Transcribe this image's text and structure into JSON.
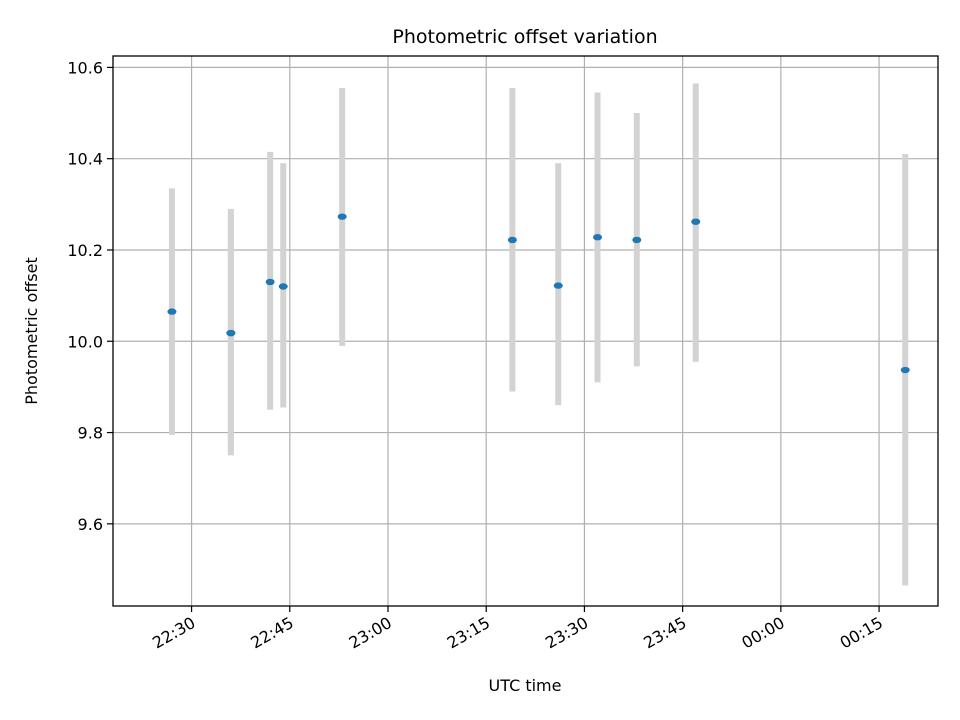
{
  "chart_data": {
    "type": "scatter",
    "title": "Photometric offset variation",
    "xlabel": "UTC time",
    "ylabel": "Photometric offset",
    "x_start": "22:18",
    "x_end": "00:24",
    "xlim_minutes": [
      -12,
      114
    ],
    "ylim": [
      9.42,
      10.625
    ],
    "grid": true,
    "x_ticks": [
      {
        "label": "22:30",
        "minute": 0
      },
      {
        "label": "22:45",
        "minute": 15
      },
      {
        "label": "23:00",
        "minute": 30
      },
      {
        "label": "23:15",
        "minute": 45
      },
      {
        "label": "23:30",
        "minute": 60
      },
      {
        "label": "23:45",
        "minute": 75
      },
      {
        "label": "00:00",
        "minute": 90
      },
      {
        "label": "00:15",
        "minute": 105
      }
    ],
    "y_ticks": [
      {
        "label": "9.6",
        "value": 9.6
      },
      {
        "label": "9.8",
        "value": 9.8
      },
      {
        "label": "10.0",
        "value": 10.0
      },
      {
        "label": "10.2",
        "value": 10.2
      },
      {
        "label": "10.4",
        "value": 10.4
      },
      {
        "label": "10.6",
        "value": 10.6
      }
    ],
    "colors": {
      "point": "#1f77b4",
      "range": "#d3d3d3",
      "grid": "#b0b0b0"
    },
    "points": [
      {
        "time": "22:27",
        "y": 10.065,
        "low": 9.795,
        "high": 10.335
      },
      {
        "time": "22:36",
        "y": 10.018,
        "low": 9.76,
        "high": 10.275
      },
      {
        "time": "22:36",
        "y": 10.018,
        "low": 9.75,
        "high": 10.29
      },
      {
        "time": "22:42",
        "y": 10.13,
        "low": 9.85,
        "high": 10.415
      },
      {
        "time": "22:44",
        "y": 10.12,
        "low": 9.855,
        "high": 10.39
      },
      {
        "time": "22:53",
        "y": 10.273,
        "low": 9.99,
        "high": 10.555
      },
      {
        "time": "23:19",
        "y": 10.222,
        "low": 9.89,
        "high": 10.555
      },
      {
        "time": "23:26",
        "y": 10.122,
        "low": 9.86,
        "high": 10.39
      },
      {
        "time": "23:32",
        "y": 10.228,
        "low": 9.91,
        "high": 10.545
      },
      {
        "time": "23:38",
        "y": 10.222,
        "low": 9.945,
        "high": 10.5
      },
      {
        "time": "23:47",
        "y": 10.262,
        "low": 9.955,
        "high": 10.565
      },
      {
        "time": "00:19",
        "y": 9.937,
        "low": 9.465,
        "high": 10.41
      }
    ]
  }
}
